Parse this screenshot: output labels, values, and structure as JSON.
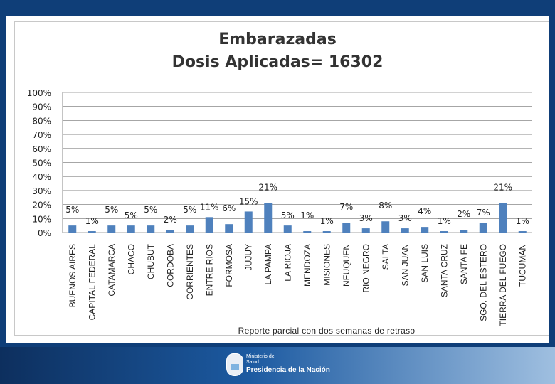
{
  "title_line1": "Embarazadas",
  "title_line2": "Dosis Aplicadas= 16302",
  "footer_note": "Reporte parcial con dos semanas de retraso",
  "logo": {
    "line1": "Ministerio de",
    "line2": "Salud",
    "line3": "Presidencia de la Nación"
  },
  "colors": {
    "bar": "#4f81bd",
    "grid": "#888888",
    "background": "#0f3e78"
  },
  "chart_data": {
    "type": "bar",
    "title": "Embarazadas Dosis Aplicadas= 16302",
    "ylim": [
      0,
      100
    ],
    "yticks": [
      "0%",
      "10%",
      "20%",
      "30%",
      "40%",
      "50%",
      "60%",
      "70%",
      "80%",
      "90%",
      "100%"
    ],
    "grid": true,
    "categories": [
      "BUENOS AIRES",
      "CAPITAL FEDERAL",
      "CATAMARCA",
      "CHACO",
      "CHUBUT",
      "CORDOBA",
      "CORRIENTES",
      "ENTRE RIOS",
      "FORMOSA",
      "JUJUY",
      "LA PAMPA",
      "LA RIOJA",
      "MENDOZA",
      "MISIONES",
      "NEUQUEN",
      "RIO NEGRO",
      "SALTA",
      "SAN JUAN",
      "SAN LUIS",
      "SANTA CRUZ",
      "SANTA FE",
      "SANTIAGO DEL ESTERO",
      "TIERRA DEL FUEGO",
      "TUCUMAN"
    ],
    "category_labels": [
      "BUENOS AIRES",
      "CAPITAL FEDERAL",
      "CATAMARCA",
      "CHACO",
      "CHUBUT",
      "CORDOBA",
      "CORRIENTES",
      "ENTRE RIOS",
      "FORMOSA",
      "JUJUY",
      "LA PAMPA",
      "LA RIOJA",
      "MENDOZA",
      "MISIONES",
      "NEUQUEN",
      "RIO NEGRO",
      "SALTA",
      "SAN JUAN",
      "SAN LUIS",
      "SANTA CRUZ",
      "SANTA FE",
      "SGO. DEL ESTERO",
      "TIERRA DEL FUEGO",
      "TUCUMAN"
    ],
    "values": [
      5,
      1,
      5,
      5,
      5,
      2,
      5,
      11,
      6,
      15,
      21,
      5,
      1,
      1,
      7,
      3,
      8,
      3,
      4,
      1,
      2,
      7,
      21,
      1
    ],
    "data_labels": [
      "5%",
      "1%",
      "5%",
      "5%",
      "5%",
      "2%",
      "5%",
      "11%",
      "6%",
      "15%",
      "21%",
      "5%",
      "1%",
      "1%",
      "7%",
      "3%",
      "8%",
      "3%",
      "4%",
      "1%",
      "2%",
      "7%",
      "21%",
      "1%"
    ]
  }
}
